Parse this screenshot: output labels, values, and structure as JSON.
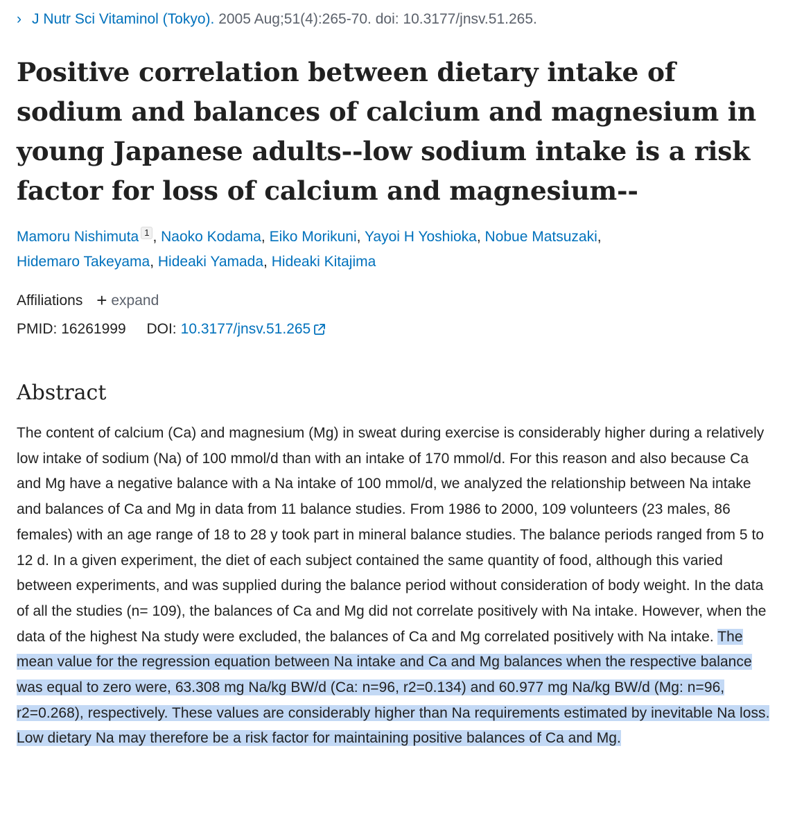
{
  "citation": {
    "chevron": "›",
    "journal": "J Nutr Sci Vitaminol (Tokyo).",
    "details": "2005 Aug;51(4):265-70. doi: 10.3177/jnsv.51.265."
  },
  "article": {
    "title_lines": [
      "Positive correlation between dietary intake of",
      "sodium and balances of calcium and magnesium in",
      "young Japanese adults--low sodium intake is a risk",
      "factor for loss of calcium and magnesium--"
    ],
    "authors": [
      "Mamoru Nishimuta",
      "Naoko Kodama",
      "Eiko Morikuni",
      "Yayoi H Yoshioka",
      "Nobue Matsuzaki",
      "Hidemaro Takeyama",
      "Hideaki Yamada",
      "Hideaki Kitajima"
    ],
    "first_author_affiliation_marker": "1",
    "separator": ",",
    "affiliations_label": "Affiliations",
    "expand_label": "expand",
    "plus_symbol": "+",
    "pmid_label": "PMID:",
    "pmid": "16261999",
    "doi_label": "DOI:",
    "doi": "10.3177/jnsv.51.265"
  },
  "abstract": {
    "heading": "Abstract",
    "text_plain": "The content of calcium (Ca) and magnesium (Mg) in sweat during exercise is considerably higher during a relatively low intake of sodium (Na) of 100 mmol/d than with an intake of 170 mmol/d. For this reason and also because Ca and Mg have a negative balance with a Na intake of 100 mmol/d, we analyzed the relationship between Na intake and balances of Ca and Mg in data from 11 balance studies. From 1986 to 2000, 109 volunteers (23 males, 86 females) with an age range of 18 to 28 y took part in mineral balance studies. The balance periods ranged from 5 to 12 d. In a given experiment, the diet of each subject contained the same quantity of food, although this varied between experiments, and was supplied during the balance period without consideration of body weight. In the data of all the studies (n= 109), the balances of Ca and Mg did not correlate positively with Na intake. However, when the data of the highest Na study were excluded, the balances of Ca and Mg correlated positively with Na intake. ",
    "text_highlighted": "The mean value for the regression equation between Na intake and Ca and Mg balances when the respective balance was equal to zero were, 63.308 mg Na/kg BW/d (Ca: n=96, r2=0.134) and 60.977 mg Na/kg BW/d (Mg: n=96, r2=0.268), respectively. These values are considerably higher than Na requirements estimated by inevitable Na loss. Low dietary Na may therefore be a risk factor for maintaining positive balances of Ca and Mg.",
    "highlight_color": "#c3d9f5"
  },
  "colors": {
    "link": "#0071bc",
    "text": "#212121",
    "muted": "#5b616b"
  },
  "icons": {
    "chevron": "chevron-right-icon",
    "plus": "plus-icon",
    "external": "external-link-icon"
  }
}
